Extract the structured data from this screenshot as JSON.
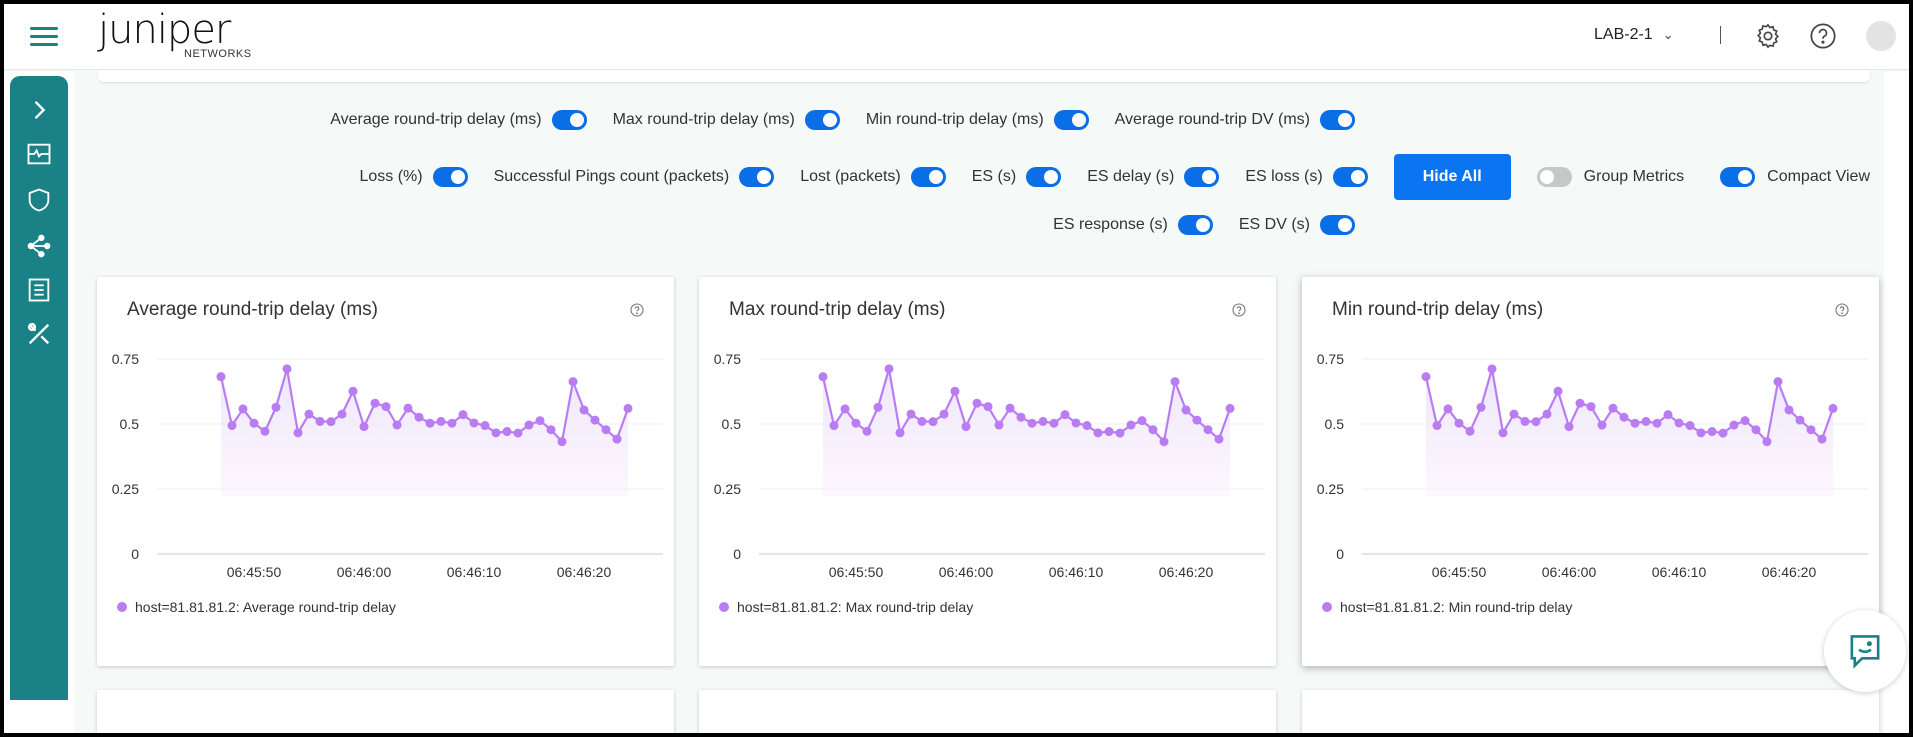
{
  "header": {
    "brand": "JUNIPER",
    "brand_sub": "NETWORKS",
    "site": "LAB-2-1",
    "icons": [
      "menu-icon",
      "settings-icon",
      "help-icon",
      "avatar"
    ]
  },
  "sidebar": {
    "icons": [
      "chevron-right-icon",
      "monitor-icon",
      "shield-icon",
      "topology-icon",
      "list-icon",
      "tools-icon"
    ],
    "accent": "#1a8187"
  },
  "toggles": {
    "row1": [
      {
        "label": "Average round-trip delay (ms)",
        "on": true
      },
      {
        "label": "Max round-trip delay (ms)",
        "on": true
      },
      {
        "label": "Min round-trip delay (ms)",
        "on": true
      },
      {
        "label": "Average round-trip DV (ms)",
        "on": true
      }
    ],
    "row2": [
      {
        "label": "Loss (%)",
        "on": true
      },
      {
        "label": "Successful Pings count (packets)",
        "on": true
      },
      {
        "label": "Lost (packets)",
        "on": true
      },
      {
        "label": "ES (s)",
        "on": true
      },
      {
        "label": "ES delay (s)",
        "on": true
      },
      {
        "label": "ES loss (s)",
        "on": true
      }
    ],
    "row3": [
      {
        "label": "ES response (s)",
        "on": true
      },
      {
        "label": "ES DV (s)",
        "on": true
      }
    ],
    "hide_all": "Hide All",
    "group_metrics": {
      "label": "Group Metrics",
      "on": false
    },
    "compact_view": {
      "label": "Compact View",
      "on": true
    },
    "accent": "#0b74f0"
  },
  "chart_data": [
    {
      "type": "line",
      "title": "Average round-trip delay (ms)",
      "ylim": [
        0,
        0.75
      ],
      "yticks": [
        "0.75",
        "0.5",
        "0.25",
        "0"
      ],
      "xticks": [
        "06:45:50",
        "06:46:00",
        "06:46:10",
        "06:46:20"
      ],
      "x_start": "06:45:47",
      "x_step_seconds": 1,
      "values": [
        0.682,
        0.494,
        0.558,
        0.503,
        0.472,
        0.564,
        0.712,
        0.466,
        0.538,
        0.51,
        0.509,
        0.538,
        0.626,
        0.49,
        0.58,
        0.567,
        0.496,
        0.561,
        0.526,
        0.503,
        0.51,
        0.503,
        0.536,
        0.504,
        0.494,
        0.466,
        0.471,
        0.465,
        0.496,
        0.513,
        0.478,
        0.432,
        0.663,
        0.554,
        0.515,
        0.478,
        0.442,
        0.56
      ],
      "legend": "host=81.81.81.2: Average round-trip delay",
      "color": "#b97cf3"
    },
    {
      "type": "line",
      "title": "Max round-trip delay (ms)",
      "ylim": [
        0,
        0.75
      ],
      "yticks": [
        "0.75",
        "0.5",
        "0.25",
        "0"
      ],
      "xticks": [
        "06:45:50",
        "06:46:00",
        "06:46:10",
        "06:46:20"
      ],
      "x_start": "06:45:47",
      "x_step_seconds": 1,
      "values": [
        0.682,
        0.494,
        0.558,
        0.503,
        0.472,
        0.564,
        0.712,
        0.466,
        0.538,
        0.51,
        0.509,
        0.538,
        0.626,
        0.49,
        0.58,
        0.567,
        0.496,
        0.561,
        0.526,
        0.503,
        0.51,
        0.503,
        0.536,
        0.504,
        0.494,
        0.466,
        0.471,
        0.465,
        0.496,
        0.513,
        0.478,
        0.432,
        0.663,
        0.554,
        0.515,
        0.478,
        0.442,
        0.56
      ],
      "legend": "host=81.81.81.2: Max round-trip delay",
      "color": "#b97cf3"
    },
    {
      "type": "line",
      "title": "Min round-trip delay (ms)",
      "ylim": [
        0,
        0.75
      ],
      "yticks": [
        "0.75",
        "0.5",
        "0.25",
        "0"
      ],
      "xticks": [
        "06:45:50",
        "06:46:00",
        "06:46:10",
        "06:46:20"
      ],
      "x_start": "06:45:47",
      "x_step_seconds": 1,
      "values": [
        0.682,
        0.494,
        0.558,
        0.503,
        0.472,
        0.564,
        0.712,
        0.466,
        0.538,
        0.51,
        0.509,
        0.538,
        0.626,
        0.49,
        0.58,
        0.567,
        0.496,
        0.561,
        0.526,
        0.503,
        0.51,
        0.503,
        0.536,
        0.504,
        0.494,
        0.466,
        0.471,
        0.465,
        0.496,
        0.513,
        0.478,
        0.432,
        0.663,
        0.554,
        0.515,
        0.478,
        0.442,
        0.56
      ],
      "legend": "host=81.81.81.2: Min round-trip delay",
      "color": "#b97cf3"
    }
  ]
}
